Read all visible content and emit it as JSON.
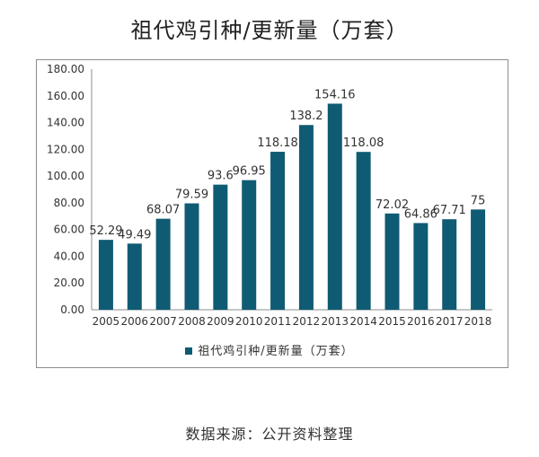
{
  "page": {
    "title": "祖代鸡引种/更新量（万套）",
    "source": "数据来源：公开资料整理"
  },
  "chart_data": {
    "type": "bar",
    "title": "祖代鸡引种/更新量（万套）",
    "xlabel": "",
    "ylabel": "",
    "categories": [
      "2005",
      "2006",
      "2007",
      "2008",
      "2009",
      "2010",
      "2011",
      "2012",
      "2013",
      "2014",
      "2015",
      "2016",
      "2017",
      "2018"
    ],
    "series": [
      {
        "name": "祖代鸡引种/更新量（万套）",
        "values": [
          52.29,
          49.49,
          68.07,
          79.59,
          93.6,
          96.95,
          118.18,
          138.2,
          154.16,
          118.08,
          72.02,
          64.86,
          67.71,
          75
        ],
        "labels": [
          "52.29",
          "49.49",
          "68.07",
          "79.59",
          "93.6",
          "96.95",
          "118.18",
          "138.2",
          "154.16",
          "118.08",
          "72.02",
          "64.86",
          "67.71",
          "75"
        ],
        "color": "#0f5b73"
      }
    ],
    "ylim": [
      0,
      180
    ],
    "yticks": [
      "0.00",
      "20.00",
      "40.00",
      "60.00",
      "80.00",
      "100.00",
      "120.00",
      "140.00",
      "160.00",
      "180.00"
    ],
    "grid": false,
    "legend_position": "bottom"
  }
}
